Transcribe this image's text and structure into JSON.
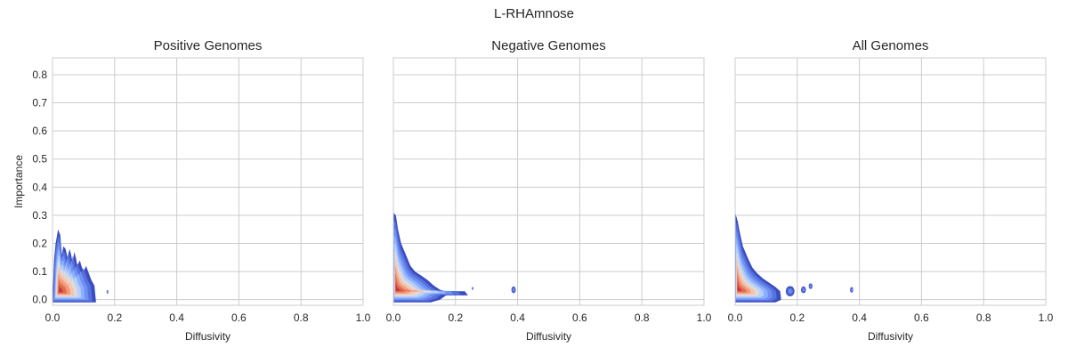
{
  "figure_title": "L-RHAmnose",
  "chart_data": [
    {
      "type": "kde_density_contour",
      "title": "Positive Genomes",
      "xlabel": "Diffusivity",
      "ylabel": "Importance",
      "xlim": [
        0,
        1.0
      ],
      "ylim": [
        -0.02,
        0.86
      ],
      "xticks": [
        "0.0",
        "0.2",
        "0.4",
        "0.6",
        "0.8",
        "1.0"
      ],
      "yticks": [
        "0.0",
        "0.1",
        "0.2",
        "0.3",
        "0.4",
        "0.5",
        "0.6",
        "0.7",
        "0.8"
      ],
      "grid": true,
      "density_outline": [
        [
          0.0,
          0.0
        ],
        [
          0.005,
          0.14
        ],
        [
          0.01,
          0.2
        ],
        [
          0.018,
          0.25
        ],
        [
          0.025,
          0.23
        ],
        [
          0.03,
          0.16
        ],
        [
          0.035,
          0.19
        ],
        [
          0.042,
          0.18
        ],
        [
          0.048,
          0.15
        ],
        [
          0.055,
          0.18
        ],
        [
          0.06,
          0.16
        ],
        [
          0.065,
          0.13
        ],
        [
          0.07,
          0.17
        ],
        [
          0.075,
          0.15
        ],
        [
          0.08,
          0.12
        ],
        [
          0.088,
          0.14
        ],
        [
          0.093,
          0.12
        ],
        [
          0.1,
          0.1
        ],
        [
          0.108,
          0.12
        ],
        [
          0.115,
          0.1
        ],
        [
          0.125,
          0.07
        ],
        [
          0.135,
          0.05
        ],
        [
          0.14,
          -0.01
        ],
        [
          0.0,
          -0.01
        ]
      ],
      "islands": [
        [
          0.177,
          0.028,
          0.003,
          0.006
        ]
      ],
      "peak": [
        0.022,
        0.03
      ]
    },
    {
      "type": "kde_density_contour",
      "title": "Negative Genomes",
      "xlabel": "Diffusivity",
      "ylabel": "",
      "xlim": [
        0,
        1.0
      ],
      "ylim": [
        -0.02,
        0.86
      ],
      "xticks": [
        "0.0",
        "0.2",
        "0.4",
        "0.6",
        "0.8",
        "1.0"
      ],
      "yticks": [],
      "grid": true,
      "density_outline": [
        [
          0.0,
          0.0
        ],
        [
          0.0,
          0.31
        ],
        [
          0.008,
          0.3
        ],
        [
          0.015,
          0.25
        ],
        [
          0.025,
          0.2
        ],
        [
          0.04,
          0.16
        ],
        [
          0.055,
          0.12
        ],
        [
          0.07,
          0.1
        ],
        [
          0.09,
          0.085
        ],
        [
          0.11,
          0.07
        ],
        [
          0.13,
          0.05
        ],
        [
          0.15,
          0.035
        ],
        [
          0.17,
          0.03
        ],
        [
          0.23,
          0.03
        ],
        [
          0.24,
          0.015
        ],
        [
          0.17,
          0.015
        ],
        [
          0.15,
          0.0
        ],
        [
          0.12,
          -0.01
        ],
        [
          0.0,
          -0.01
        ]
      ],
      "islands": [
        [
          0.255,
          0.04,
          0.003,
          0.005
        ],
        [
          0.387,
          0.035,
          0.007,
          0.012
        ]
      ],
      "peak": [
        0.008,
        0.035
      ]
    },
    {
      "type": "kde_density_contour",
      "title": "All Genomes",
      "xlabel": "Diffusivity",
      "ylabel": "",
      "xlim": [
        0,
        1.0
      ],
      "ylim": [
        -0.02,
        0.86
      ],
      "xticks": [
        "0.0",
        "0.2",
        "0.4",
        "0.6",
        "0.8",
        "1.0"
      ],
      "yticks": [],
      "grid": true,
      "density_outline": [
        [
          0.0,
          0.0
        ],
        [
          0.0,
          0.31
        ],
        [
          0.008,
          0.28
        ],
        [
          0.015,
          0.24
        ],
        [
          0.025,
          0.19
        ],
        [
          0.04,
          0.15
        ],
        [
          0.055,
          0.115
        ],
        [
          0.07,
          0.095
        ],
        [
          0.09,
          0.075
        ],
        [
          0.11,
          0.06
        ],
        [
          0.13,
          0.045
        ],
        [
          0.145,
          0.03
        ],
        [
          0.148,
          0.0
        ],
        [
          0.13,
          -0.01
        ],
        [
          0.0,
          -0.01
        ]
      ],
      "islands": [
        [
          0.177,
          0.03,
          0.014,
          0.018
        ],
        [
          0.22,
          0.035,
          0.008,
          0.012
        ],
        [
          0.243,
          0.048,
          0.006,
          0.01
        ],
        [
          0.375,
          0.035,
          0.005,
          0.01
        ]
      ],
      "peak": [
        0.008,
        0.035
      ]
    }
  ],
  "colors": {
    "levels": [
      "#3b4cc0",
      "#5572df",
      "#6f8ff1",
      "#8db0fe",
      "#b7cff9",
      "#dddcdc",
      "#f5c4ac",
      "#f49a7b",
      "#e36b51",
      "#c43c3c"
    ],
    "grid": "#cccccc",
    "spine": "#cccccc",
    "text": "#262626"
  }
}
